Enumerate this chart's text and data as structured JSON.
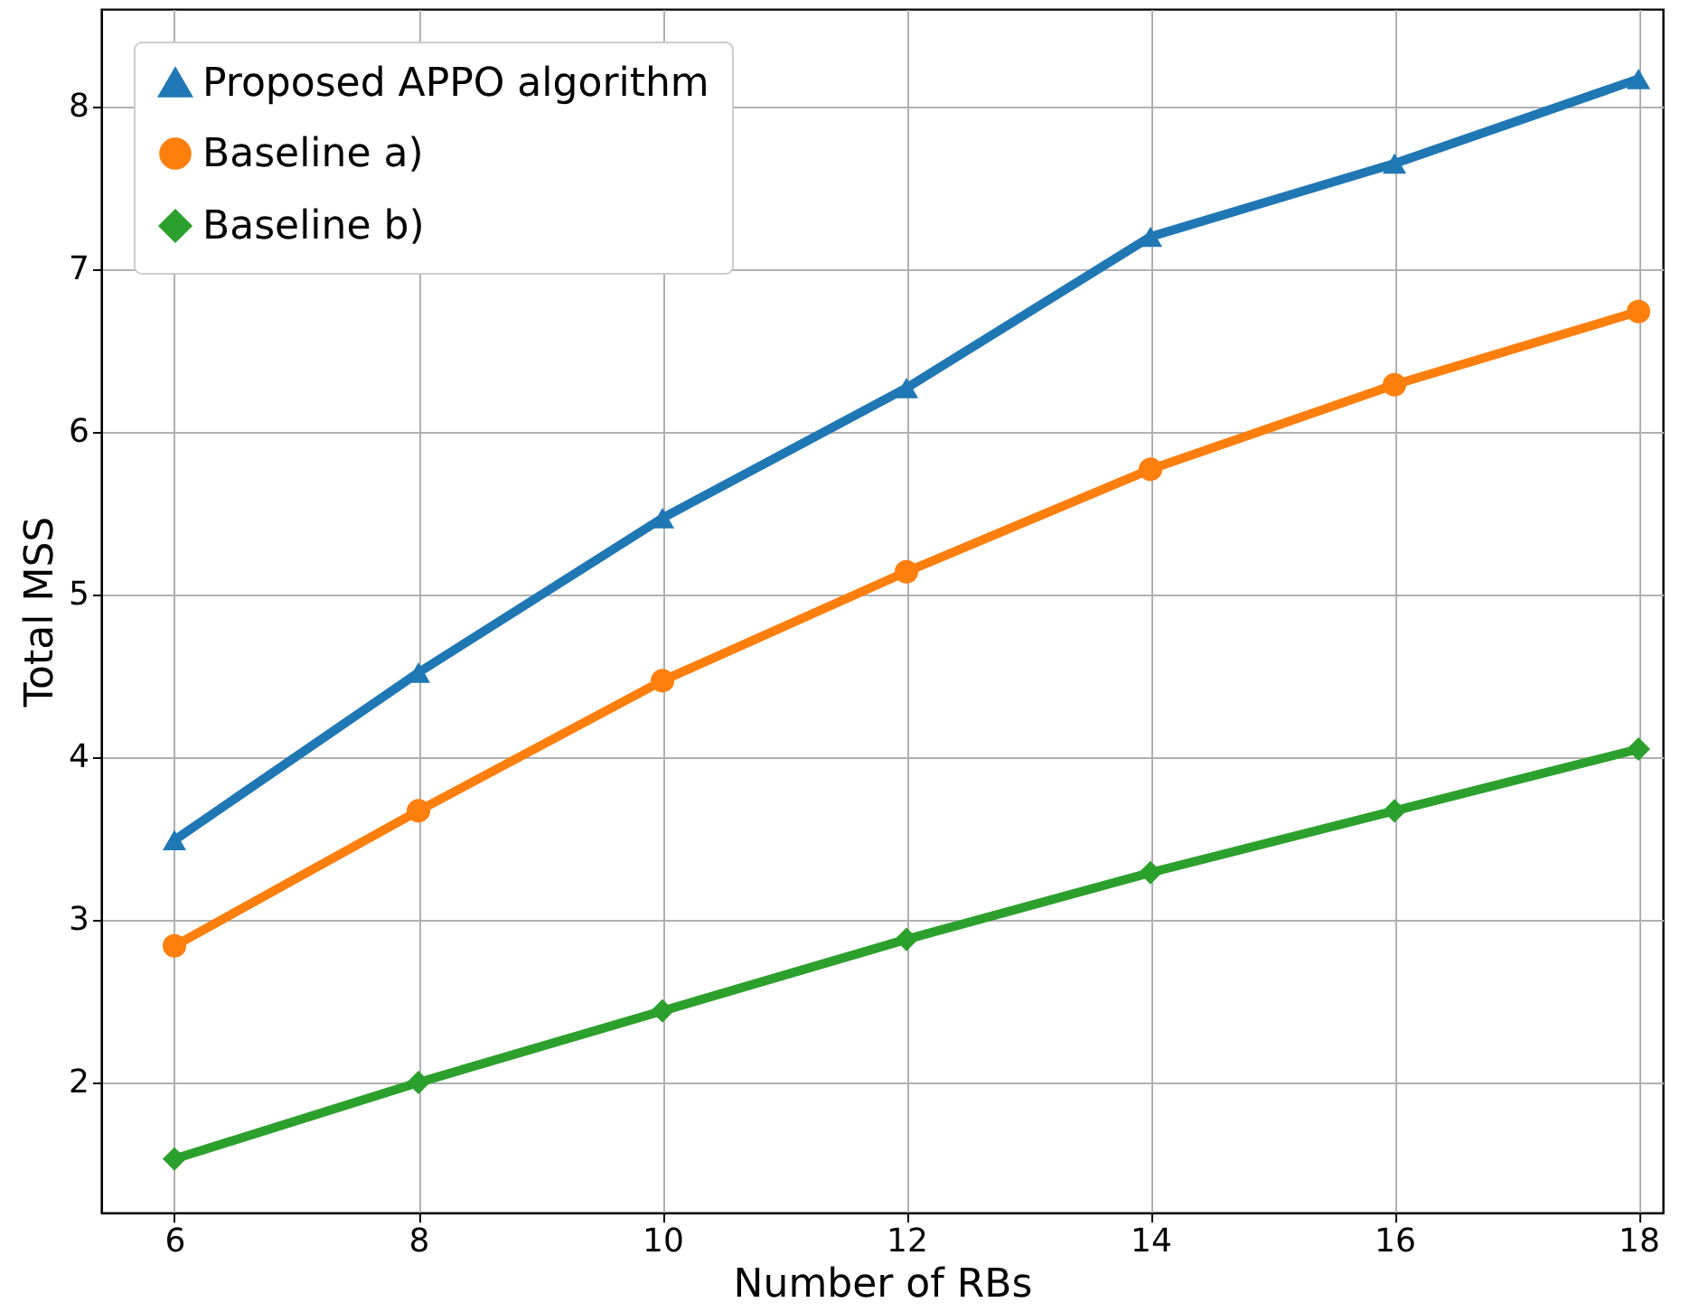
{
  "chart_data": {
    "type": "line",
    "xlabel": "Number of RBs",
    "ylabel": "Total MSS",
    "x": [
      6,
      8,
      10,
      12,
      14,
      16,
      18
    ],
    "series": [
      {
        "name": "Proposed APPO algorithm",
        "color": "#1f77b4",
        "marker": "triangle",
        "values": [
          3.49,
          4.52,
          5.47,
          6.27,
          7.2,
          7.65,
          8.17
        ]
      },
      {
        "name": "Baseline a)",
        "color": "#ff7f0e",
        "marker": "circle",
        "values": [
          2.84,
          3.67,
          4.47,
          5.14,
          5.77,
          6.29,
          6.74
        ]
      },
      {
        "name": "Baseline b)",
        "color": "#2ca02c",
        "marker": "diamond",
        "values": [
          1.53,
          2.0,
          2.44,
          2.88,
          3.29,
          3.67,
          4.05
        ]
      }
    ],
    "xlim": [
      5.4,
      18.2
    ],
    "xticks": [
      6,
      8,
      10,
      12,
      14,
      16,
      18
    ],
    "ylim": [
      1.2,
      8.6
    ],
    "yticks": [
      2,
      3,
      4,
      5,
      6,
      7,
      8
    ],
    "grid": true,
    "legend": "top left",
    "line_style": "solid"
  }
}
